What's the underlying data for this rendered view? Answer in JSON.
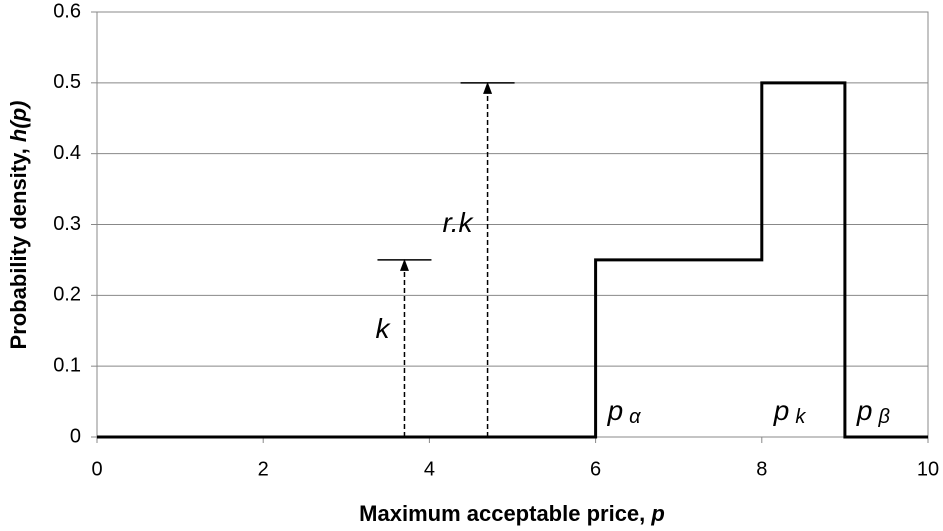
{
  "chart_data": {
    "type": "line",
    "ylabel": "Probability density, ",
    "ylabel_var": "h(p)",
    "xlabel": "Maximum acceptable price, ",
    "xlabel_var": "p",
    "xlim": [
      0,
      10
    ],
    "xticks": [
      0,
      2,
      4,
      6,
      8,
      10
    ],
    "ylim": [
      0,
      0.6
    ],
    "yticks": [
      0,
      0.1,
      0.2,
      0.3,
      0.4,
      0.5,
      0.6
    ],
    "grid": true,
    "series": [
      {
        "color": "#000000",
        "x": [
          0,
          6,
          6,
          8,
          8,
          9,
          9,
          10
        ],
        "values": [
          0,
          0,
          0.25,
          0.25,
          0.5,
          0.5,
          0,
          0
        ]
      }
    ],
    "annotations": [
      {
        "label": "k",
        "x": 3.7,
        "y": 0.25
      },
      {
        "label": "r.k",
        "x": 4.7,
        "y": 0.5
      }
    ],
    "point_labels": [
      {
        "text": "p",
        "sub": "α",
        "x": 6
      },
      {
        "text": "p",
        "sub": "k",
        "x": 8
      },
      {
        "text": "p",
        "sub": "β",
        "x": 9
      }
    ]
  }
}
